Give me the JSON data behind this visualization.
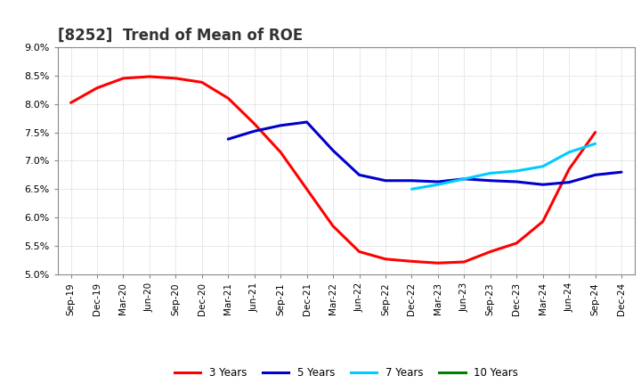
{
  "title": "[8252]  Trend of Mean of ROE",
  "xlabels": [
    "Sep-19",
    "Dec-19",
    "Mar-20",
    "Jun-20",
    "Sep-20",
    "Dec-20",
    "Mar-21",
    "Jun-21",
    "Sep-21",
    "Dec-21",
    "Mar-22",
    "Jun-22",
    "Sep-22",
    "Dec-22",
    "Mar-23",
    "Jun-23",
    "Sep-23",
    "Dec-23",
    "Mar-24",
    "Jun-24",
    "Sep-24",
    "Dec-24"
  ],
  "ylim": [
    0.05,
    0.09
  ],
  "yticks": [
    0.05,
    0.055,
    0.06,
    0.065,
    0.07,
    0.075,
    0.08,
    0.085,
    0.09
  ],
  "series": {
    "3 Years": {
      "color": "#FF0000",
      "values": [
        0.0802,
        0.0828,
        0.0845,
        0.0848,
        0.0845,
        0.0838,
        0.081,
        0.0765,
        0.0715,
        0.065,
        0.0585,
        0.054,
        0.0527,
        0.0523,
        0.052,
        0.0522,
        0.054,
        0.0555,
        0.0593,
        0.0685,
        0.075,
        null
      ]
    },
    "5 Years": {
      "color": "#0000CC",
      "values": [
        null,
        null,
        null,
        null,
        null,
        null,
        0.0738,
        0.0752,
        0.0762,
        0.0768,
        0.0718,
        0.0675,
        0.0665,
        0.0665,
        0.0663,
        0.0668,
        0.0665,
        0.0663,
        0.0658,
        0.0662,
        0.0675,
        0.068
      ]
    },
    "7 Years": {
      "color": "#00CCFF",
      "values": [
        null,
        null,
        null,
        null,
        null,
        null,
        null,
        null,
        null,
        null,
        null,
        null,
        null,
        0.065,
        0.0658,
        0.0668,
        0.0678,
        0.0682,
        0.069,
        0.0715,
        0.073,
        null
      ]
    },
    "10 Years": {
      "color": "#008000",
      "values": [
        null,
        null,
        null,
        null,
        null,
        null,
        null,
        null,
        null,
        null,
        null,
        null,
        null,
        null,
        null,
        null,
        null,
        null,
        null,
        null,
        null,
        null
      ]
    }
  },
  "legend_order": [
    "3 Years",
    "5 Years",
    "7 Years",
    "10 Years"
  ],
  "background_color": "#FFFFFF",
  "grid_color": "#BBBBBB",
  "title_fontsize": 12,
  "tick_fontsize": 7.5,
  "ytick_fontsize": 8,
  "linewidth": 2.2
}
